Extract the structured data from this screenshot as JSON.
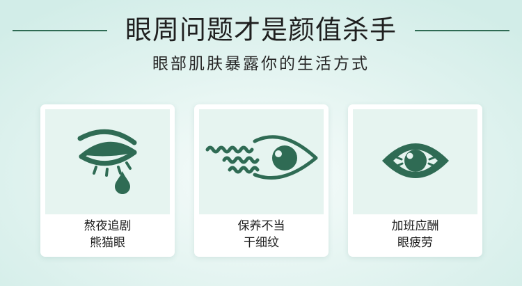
{
  "header": {
    "title": "眼周问题才是颜值杀手",
    "subtitle": "眼部肌肤暴露你的生活方式"
  },
  "colors": {
    "accent": "#2f6b54",
    "card_panel": "#e6f4f0",
    "background": "#d8f0eb"
  },
  "cards": [
    {
      "icon": "crying-eye-icon",
      "line1": "熬夜追剧",
      "line2": "熊猫眼"
    },
    {
      "icon": "eye-with-wrinkles-icon",
      "line1": "保养不当",
      "line2": "干细纹"
    },
    {
      "icon": "tired-eye-icon",
      "line1": "加班应酬",
      "line2": "眼疲劳"
    }
  ]
}
